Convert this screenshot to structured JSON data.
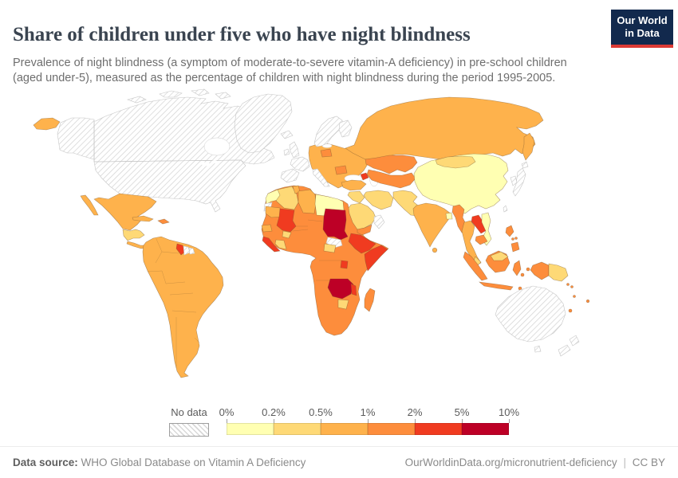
{
  "header": {
    "title": "Share of children under five who have night blindness",
    "subtitle": "Prevalence of night blindness (a symptom of moderate-to-severe vitamin-A deficiency) in pre-school children (aged under-5), measured as the percentage of children with night blindness during the period 1995-2005."
  },
  "logo": {
    "line1": "Our World",
    "line2": "in Data",
    "bg_color": "#12294d",
    "accent_color": "#dc3a34"
  },
  "legend": {
    "no_data_label": "No data",
    "ticks": [
      "0%",
      "0.2%",
      "0.5%",
      "1%",
      "2%",
      "5%",
      "10%"
    ]
  },
  "footer": {
    "source_label": "Data source:",
    "source_text": "WHO Global Database on Vitamin A Deficiency",
    "link_text": "OurWorldinData.org/micronutrient-deficiency",
    "separator": "|",
    "license_text": "CC BY"
  },
  "chart_data": {
    "type": "choropleth",
    "title": "Share of children under five who have night blindness",
    "unit": "% of children under 5 with night blindness",
    "period": "1995-2005",
    "no_data_pattern": "diagonal-hatch",
    "legend_ticks": [
      "0%",
      "0.2%",
      "0.5%",
      "1%",
      "2%",
      "5%",
      "10%"
    ],
    "color_scale": {
      "bins": [
        {
          "label": "0%-0.2%",
          "color": "#ffffb2"
        },
        {
          "label": "0.2%-0.5%",
          "color": "#fed976"
        },
        {
          "label": "0.5%-1%",
          "color": "#feb24c"
        },
        {
          "label": "1%-2%",
          "color": "#fd8d3c"
        },
        {
          "label": "2%-5%",
          "color": "#f03b20"
        },
        {
          "label": "5%-10%",
          "color": "#bd0026"
        }
      ]
    },
    "countries": {
      "United States": "No data",
      "Canada": "No data",
      "Greenland": "No data",
      "Iceland": "No data",
      "United Kingdom": "No data",
      "Ireland": "No data",
      "France": "No data",
      "Spain": "No data",
      "Portugal": "No data",
      "Italy": "No data",
      "Norway": "No data",
      "Sweden": "No data",
      "Finland": "No data",
      "Australia": "No data",
      "New Zealand": "No data",
      "Japan": "No data",
      "South Korea": "No data",
      "Taiwan": "No data",
      "Oman": "No data",
      "South Sudan": "No data",
      "Western Sahara": "No data",
      "Suriname": "No data",
      "French Guiana": "No data",
      "China": "0%-0.2%",
      "Egypt": "0%-0.2%",
      "Morocco": "0%-0.2%",
      "Vietnam": "0%-0.2%",
      "Bangladesh": "0%-0.2%",
      "Algeria": "0.2%-0.5%",
      "Iran": "0.2%-0.5%",
      "Afghanistan": "0.2%-0.5%",
      "Pakistan": "0.2%-0.5%",
      "Saudi Arabia": "0.2%-0.5%",
      "Iraq": "0.2%-0.5%",
      "Syria": "0.2%-0.5%",
      "Mongolia": "0.2%-0.5%",
      "Cote d'Ivoire": "0.2%-0.5%",
      "Central African Republic": "0.2%-0.5%",
      "Zimbabwe": "0.2%-0.5%",
      "Guatemala": "0.2%-0.5%",
      "Honduras": "0.2%-0.5%",
      "Nicaragua": "0.2%-0.5%",
      "Papua New Guinea": "0.2%-0.5%",
      "Malaysia": "0.2%-0.5%",
      "Burkina Faso": "0.2%-0.5%",
      "Russia": "0.5%-1%",
      "Mexico": "0.5%-1%",
      "Brazil": "0.5%-1%",
      "Colombia": "0.5%-1%",
      "Venezuela": "0.5%-1%",
      "Ecuador": "0.5%-1%",
      "Peru": "0.5%-1%",
      "Bolivia": "0.5%-1%",
      "Paraguay": "0.5%-1%",
      "Uruguay": "0.5%-1%",
      "Argentina": "0.5%-1%",
      "Chile": "0.5%-1%",
      "Cuba": "0.5%-1%",
      "Turkey": "0.5%-1%",
      "Ukraine": "0.5%-1%",
      "Eastern Europe": "0.5%-1%",
      "India": "0.5%-1%",
      "Sri Lanka": "0.5%-1%",
      "Thailand": "0.5%-1%",
      "Libya": "0.5%-1%",
      "Tunisia": "0.5%-1%",
      "Mauritania": "0.5%-1%",
      "Senegal": "0.5%-1%",
      "Panama": "0.5%-1%",
      "Costa Rica": "0.5%-1%",
      "Kazakhstan": "1%-2%",
      "Uzbekistan": "1%-2%",
      "Turkmenistan": "1%-2%",
      "Kyrgyzstan": "1%-2%",
      "Tajikistan": "1%-2%",
      "Myanmar": "1%-2%",
      "Cambodia": "1%-2%",
      "Indonesia": "1%-2%",
      "Philippines": "1%-2%",
      "Niger": "1%-2%",
      "Chad": "1%-2%",
      "Nigeria": "1%-2%",
      "Ghana": "1%-2%",
      "Guinea": "1%-2%",
      "Cameroon": "1%-2%",
      "DR Congo": "1%-2%",
      "Angola": "1%-2%",
      "Namibia": "1%-2%",
      "Botswana": "1%-2%",
      "South Africa": "1%-2%",
      "Mozambique": "1%-2%",
      "Kenya": "1%-2%",
      "Tanzania": "1%-2%",
      "Madagascar": "1%-2%",
      "Yemen": "1%-2%",
      "Haiti": "1%-2%",
      "Dominican Republic": "1%-2%",
      "Eritrea": "1%-2%",
      "Poland": "1%-2%",
      "Romania": "1%-2%",
      "Solomon Islands": "1%-2%",
      "Vanuatu": "1%-2%",
      "Fiji": "1%-2%",
      "New Caledonia": "1%-2%",
      "Mali": "2%-5%",
      "Ethiopia": "2%-5%",
      "Somalia": "2%-5%",
      "Laos": "2%-5%",
      "Sierra Leone": "2%-5%",
      "Liberia": "2%-5%",
      "Guyana": "2%-5%",
      "Uganda": "2%-5%",
      "Malawi": "2%-5%",
      "Armenia": "2%-5%",
      "Azerbaijan": "2%-5%",
      "Sudan": "5%-10%",
      "Zambia": "5%-10%"
    }
  }
}
